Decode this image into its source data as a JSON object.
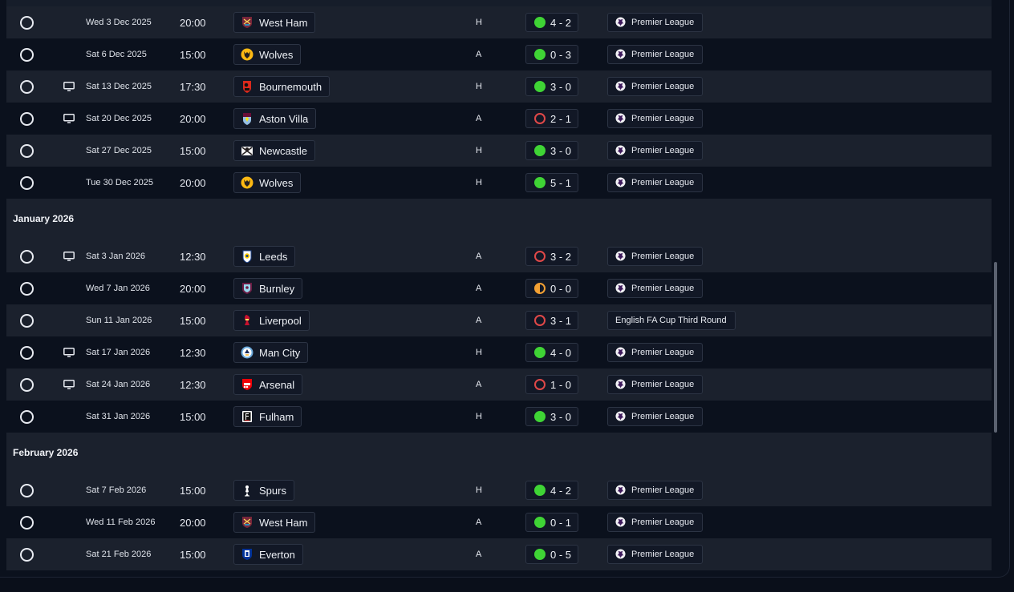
{
  "colors": {
    "win": "#3fd435",
    "loss": "#e04848",
    "draw": "#f2a033",
    "row_alt": "#1b212d",
    "background": "#0b111d"
  },
  "groups": [
    {
      "month": "",
      "fixtures": [
        {
          "date": "Wed 3 Dec 2025",
          "time": "20:00",
          "tv": false,
          "team": "West Ham",
          "crest": "west-ham-crest-icon",
          "venue": "H",
          "result": "win",
          "score": "4 - 2",
          "competition": "Premier League",
          "comp_icon": true
        },
        {
          "date": "Sat 6 Dec 2025",
          "time": "15:00",
          "tv": false,
          "team": "Wolves",
          "crest": "wolves-crest-icon",
          "venue": "A",
          "result": "win",
          "score": "0 - 3",
          "competition": "Premier League",
          "comp_icon": true
        },
        {
          "date": "Sat 13 Dec 2025",
          "time": "17:30",
          "tv": true,
          "team": "Bournemouth",
          "crest": "bournemouth-crest-icon",
          "venue": "H",
          "result": "win",
          "score": "3 - 0",
          "competition": "Premier League",
          "comp_icon": true
        },
        {
          "date": "Sat 20 Dec 2025",
          "time": "20:00",
          "tv": true,
          "team": "Aston Villa",
          "crest": "aston-villa-crest-icon",
          "venue": "A",
          "result": "loss",
          "score": "2 - 1",
          "competition": "Premier League",
          "comp_icon": true
        },
        {
          "date": "Sat 27 Dec 2025",
          "time": "15:00",
          "tv": false,
          "team": "Newcastle",
          "crest": "newcastle-crest-icon",
          "venue": "H",
          "result": "win",
          "score": "3 - 0",
          "competition": "Premier League",
          "comp_icon": true
        },
        {
          "date": "Tue 30 Dec 2025",
          "time": "20:00",
          "tv": false,
          "team": "Wolves",
          "crest": "wolves-crest-icon",
          "venue": "H",
          "result": "win",
          "score": "5 - 1",
          "competition": "Premier League",
          "comp_icon": true
        }
      ]
    },
    {
      "month": "January 2026",
      "fixtures": [
        {
          "date": "Sat 3 Jan 2026",
          "time": "12:30",
          "tv": true,
          "team": "Leeds",
          "crest": "leeds-crest-icon",
          "venue": "A",
          "result": "loss",
          "score": "3 - 2",
          "competition": "Premier League",
          "comp_icon": true
        },
        {
          "date": "Wed 7 Jan 2026",
          "time": "20:00",
          "tv": false,
          "team": "Burnley",
          "crest": "burnley-crest-icon",
          "venue": "A",
          "result": "draw",
          "score": "0 - 0",
          "competition": "Premier League",
          "comp_icon": true
        },
        {
          "date": "Sun 11 Jan 2026",
          "time": "15:00",
          "tv": false,
          "team": "Liverpool",
          "crest": "liverpool-crest-icon",
          "venue": "A",
          "result": "loss",
          "score": "3 - 1",
          "competition": "English FA Cup Third Round",
          "comp_icon": false
        },
        {
          "date": "Sat 17 Jan 2026",
          "time": "12:30",
          "tv": true,
          "team": "Man City",
          "crest": "man-city-crest-icon",
          "venue": "H",
          "result": "win",
          "score": "4 - 0",
          "competition": "Premier League",
          "comp_icon": true
        },
        {
          "date": "Sat 24 Jan 2026",
          "time": "12:30",
          "tv": true,
          "team": "Arsenal",
          "crest": "arsenal-crest-icon",
          "venue": "A",
          "result": "loss",
          "score": "1 - 0",
          "competition": "Premier League",
          "comp_icon": true
        },
        {
          "date": "Sat 31 Jan 2026",
          "time": "15:00",
          "tv": false,
          "team": "Fulham",
          "crest": "fulham-crest-icon",
          "venue": "H",
          "result": "win",
          "score": "3 - 0",
          "competition": "Premier League",
          "comp_icon": true
        }
      ]
    },
    {
      "month": "February 2026",
      "fixtures": [
        {
          "date": "Sat 7 Feb 2026",
          "time": "15:00",
          "tv": false,
          "team": "Spurs",
          "crest": "spurs-crest-icon",
          "venue": "H",
          "result": "win",
          "score": "4 - 2",
          "competition": "Premier League",
          "comp_icon": true
        },
        {
          "date": "Wed 11 Feb 2026",
          "time": "20:00",
          "tv": false,
          "team": "West Ham",
          "crest": "west-ham-crest-icon",
          "venue": "A",
          "result": "win",
          "score": "0 - 1",
          "competition": "Premier League",
          "comp_icon": true
        },
        {
          "date": "Sat 21 Feb 2026",
          "time": "15:00",
          "tv": false,
          "team": "Everton",
          "crest": "everton-crest-icon",
          "venue": "A",
          "result": "win",
          "score": "0 - 5",
          "competition": "Premier League",
          "comp_icon": true
        }
      ]
    }
  ]
}
